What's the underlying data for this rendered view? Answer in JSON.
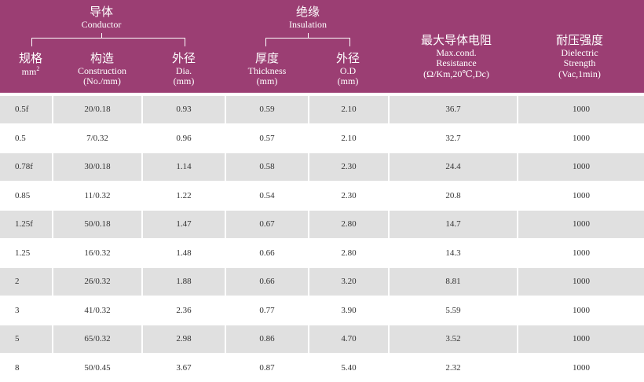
{
  "header": {
    "conductor_group": {
      "cn": "导体",
      "en": "Conductor"
    },
    "insulation_group": {
      "cn": "绝缘",
      "en": "Insulation"
    },
    "columns": {
      "size": {
        "cn": "规格",
        "unit": "mm",
        "unit_sup": "2"
      },
      "construction": {
        "cn": "构造",
        "en": "Construction",
        "unit": "(No./mm)"
      },
      "conductor_dia": {
        "cn": "外径",
        "en": "Dia.",
        "unit": "(mm)"
      },
      "thickness": {
        "cn": "厚度",
        "en": "Thickness",
        "unit": "(mm)"
      },
      "insulation_od": {
        "cn": "外径",
        "en": "O.D",
        "unit": "(mm)"
      },
      "resistance": {
        "cn": "最大导体电阻",
        "en1": "Max.cond.",
        "en2": "Resistance",
        "unit": "(Ω/Km,20℃,Dc)"
      },
      "dielectric": {
        "cn": "耐压强度",
        "en1": "Dielectric",
        "en2": "Strength",
        "unit": "(Vac,1min)"
      }
    }
  },
  "rows": [
    [
      "0.5f",
      "20/0.18",
      "0.93",
      "0.59",
      "2.10",
      "36.7",
      "1000"
    ],
    [
      "0.5",
      "7/0.32",
      "0.96",
      "0.57",
      "2.10",
      "32.7",
      "1000"
    ],
    [
      "0.78f",
      "30/0.18",
      "1.14",
      "0.58",
      "2.30",
      "24.4",
      "1000"
    ],
    [
      "0.85",
      "11/0.32",
      "1.22",
      "0.54",
      "2.30",
      "20.8",
      "1000"
    ],
    [
      "1.25f",
      "50/0.18",
      "1.47",
      "0.67",
      "2.80",
      "14.7",
      "1000"
    ],
    [
      "1.25",
      "16/0.32",
      "1.48",
      "0.66",
      "2.80",
      "14.3",
      "1000"
    ],
    [
      "2",
      "26/0.32",
      "1.88",
      "0.66",
      "3.20",
      "8.81",
      "1000"
    ],
    [
      "3",
      "41/0.32",
      "2.36",
      "0.77",
      "3.90",
      "5.59",
      "1000"
    ],
    [
      "5",
      "65/0.32",
      "2.98",
      "0.86",
      "4.70",
      "3.52",
      "1000"
    ],
    [
      "8",
      "50/0.45",
      "3.67",
      "0.87",
      "5.40",
      "2.32",
      "1000"
    ]
  ],
  "colors": {
    "header_bg": "#9b3e73",
    "header_text": "#ffffff",
    "row_shade": "#e0e0e0",
    "text": "#333333"
  }
}
